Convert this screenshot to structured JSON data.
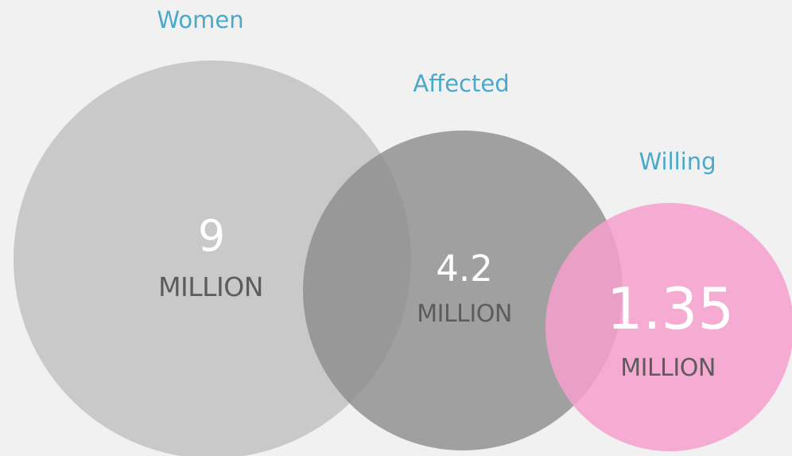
{
  "groups": [
    {
      "label": "Women",
      "value": "9",
      "unit": "MILLION",
      "color": "#c6c6c6"
    },
    {
      "label": "Affected",
      "value": "4.2",
      "unit": "MILLION",
      "color": "#8e8e8e"
    },
    {
      "label": "Willing",
      "value": "1.35",
      "unit": "MILLION",
      "color": "#f79fcd"
    }
  ],
  "colors": {
    "background": "#f1f1f1",
    "label": "#4aa9c9",
    "value_text": "#ffffff",
    "unit_text": "#5c5c5c"
  }
}
